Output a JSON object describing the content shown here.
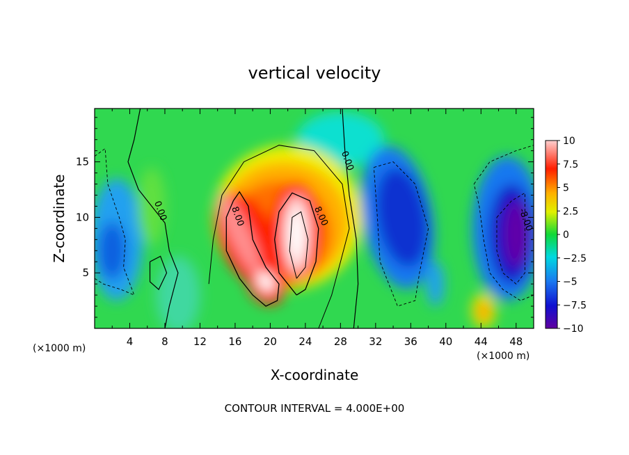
{
  "chart_data": {
    "type": "heatmap",
    "title": "vertical velocity",
    "xlabel": "X-coordinate",
    "ylabel": "Z-coordinate",
    "x_unit_label_left": "(×1000 m)",
    "x_unit_label_right": "(×1000 m)",
    "footer": "CONTOUR INTERVAL = 4.000E+00",
    "xlim": [
      0,
      50
    ],
    "ylim": [
      0,
      19.8
    ],
    "x_ticks": [
      "4",
      "8",
      "12",
      "16",
      "20",
      "24",
      "28",
      "32",
      "36",
      "40",
      "44",
      "48"
    ],
    "y_ticks": [
      "5",
      "10",
      "15"
    ],
    "colorbar": {
      "range": [
        -10,
        10
      ],
      "tick_labels": [
        "10",
        "7.5",
        "5",
        "2.5",
        "0",
        "−2.5",
        "−5",
        "−7.5",
        "−10"
      ]
    },
    "contour_labels": [
      {
        "text": "0.00",
        "x": 7.2,
        "y": 10.5
      },
      {
        "text": "0.00",
        "x": 28.5,
        "y": 15.0
      },
      {
        "text": "8.00",
        "x": 16.0,
        "y": 10.0
      },
      {
        "text": "8.00",
        "x": 25.5,
        "y": 10.0
      },
      {
        "text": "-8.00",
        "x": 48.8,
        "y": 9.7
      }
    ],
    "features": [
      {
        "kind": "updraft",
        "center_x": 23,
        "center_z": 8,
        "peak": 16
      },
      {
        "kind": "updraft",
        "center_x": 16,
        "center_z": 8,
        "peak": 12
      },
      {
        "kind": "updraft",
        "center_x": 19,
        "center_z": 4,
        "peak": 11
      },
      {
        "kind": "downdraft",
        "center_x": 35,
        "center_z": 10,
        "peak": -7
      },
      {
        "kind": "downdraft",
        "center_x": 48,
        "center_z": 8,
        "peak": -12
      },
      {
        "kind": "downdraft",
        "center_x": 2,
        "center_z": 7,
        "peak": -5
      },
      {
        "kind": "updraft",
        "center_x": 44.3,
        "center_z": 1.5,
        "peak": 5
      }
    ]
  }
}
